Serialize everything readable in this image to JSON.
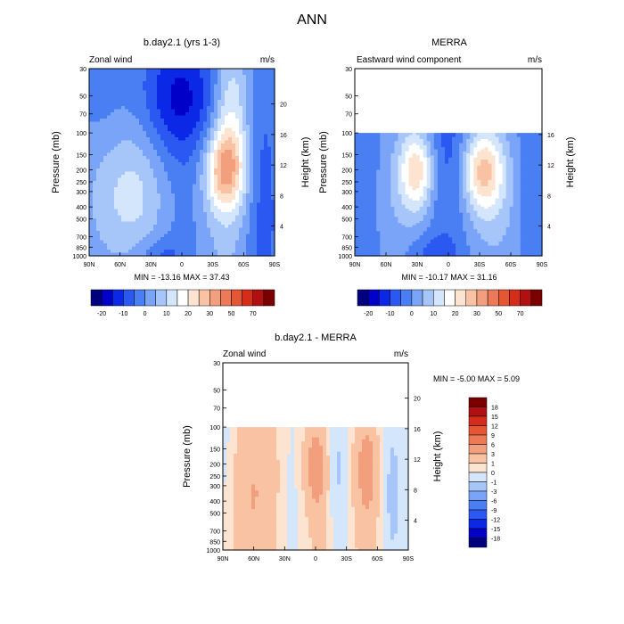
{
  "figure": {
    "title": "ANN"
  },
  "colors": {
    "panel_levels": [
      "#00007f",
      "#0000c8",
      "#0a28e6",
      "#2c58f2",
      "#4a7ff4",
      "#7aa4f7",
      "#a6c6fa",
      "#d4e6fc",
      "#ffffff",
      "#fde4d0",
      "#f9c3a3",
      "#f29f7d",
      "#ec7a58",
      "#e45634",
      "#d42e1a",
      "#b01010",
      "#7a0000"
    ],
    "diff_levels": [
      "#00007f",
      "#0000c8",
      "#0a28e6",
      "#2c58f2",
      "#4a7ff4",
      "#7aa4f7",
      "#a6c6fa",
      "#d4e6fc",
      "#fde4d0",
      "#f9c3a3",
      "#f29f7d",
      "#ec7a58",
      "#e45634",
      "#d42e1a",
      "#b01010",
      "#7a0000"
    ]
  },
  "chart_data": [
    {
      "type": "heatmap",
      "title": "b.day2.1 (yrs 1-3)",
      "left_label": "Zonal wind",
      "right_label": "m/s",
      "xlabel": "",
      "ylabel": "Pressure (mb)",
      "y2label": "Height (km)",
      "x_ticks": [
        "90N",
        "60N",
        "30N",
        "0",
        "30S",
        "60S",
        "90S"
      ],
      "y_ticks": [
        "30",
        "50",
        "70",
        "100",
        "150",
        "200",
        "250",
        "300",
        "400",
        "500",
        "700",
        "850",
        "1000"
      ],
      "y2_ticks": [
        "20",
        "16",
        "12",
        "8",
        "4"
      ],
      "xlim": [
        90,
        -90
      ],
      "ylim": [
        1000,
        30
      ],
      "log_scale_y": true,
      "data_top_pressure": 30,
      "stats": "MIN = -13.16   MAX =  37.43",
      "colorbar_labels": [
        "-20",
        "-10",
        "0",
        "10",
        "20",
        "30",
        "50",
        "70"
      ],
      "blobs": [
        {
          "lat": 50,
          "p": 350,
          "sx": 30,
          "sy": 0.9,
          "a": 7
        },
        {
          "lat": 65,
          "p": 150,
          "sx": 25,
          "sy": 1.4,
          "a": 3
        },
        {
          "lat": 38,
          "p": 300,
          "sx": 22,
          "sy": 0.8,
          "a": 4
        },
        {
          "lat": -42,
          "p": 200,
          "sx": 14,
          "sy": 0.55,
          "a": 28
        },
        {
          "lat": -48,
          "p": 60,
          "sx": 12,
          "sy": 0.9,
          "a": 14
        },
        {
          "lat": -38,
          "p": 700,
          "sx": 22,
          "sy": 1.0,
          "a": 7
        },
        {
          "lat": 2,
          "p": 50,
          "sx": 25,
          "sy": 0.8,
          "a": -16
        },
        {
          "lat": -5,
          "p": 500,
          "sx": 25,
          "sy": 1.3,
          "a": -5
        },
        {
          "lat": 22,
          "p": 950,
          "sx": 16,
          "sy": 0.2,
          "a": -6
        },
        {
          "lat": 75,
          "p": 50,
          "sx": 18,
          "sy": 0.9,
          "a": -4
        },
        {
          "lat": -78,
          "p": 500,
          "sx": 12,
          "sy": 2.0,
          "a": -8
        }
      ]
    },
    {
      "type": "heatmap",
      "title": "MERRA",
      "left_label": "Eastward wind component",
      "right_label": "m/s",
      "xlabel": "",
      "ylabel": "Pressure (mb)",
      "y2label": "Height (km)",
      "x_ticks": [
        "90N",
        "60N",
        "30N",
        "0",
        "30S",
        "60S",
        "90S"
      ],
      "y_ticks": [
        "30",
        "50",
        "70",
        "100",
        "150",
        "200",
        "250",
        "300",
        "400",
        "500",
        "700",
        "850",
        "1000"
      ],
      "y2_ticks": [
        "16",
        "12",
        "8",
        "4"
      ],
      "xlim": [
        90,
        -90
      ],
      "ylim": [
        1000,
        30
      ],
      "log_scale_y": true,
      "data_top_pressure": 100,
      "stats": "MIN = -10.17   MAX =  31.16",
      "colorbar_labels": [
        "-20",
        "-10",
        "0",
        "10",
        "20",
        "30",
        "50",
        "70"
      ],
      "blobs": [
        {
          "lat": 30,
          "p": 200,
          "sx": 12,
          "sy": 0.55,
          "a": 24
        },
        {
          "lat": 38,
          "p": 350,
          "sx": 25,
          "sy": 1.0,
          "a": 5
        },
        {
          "lat": -33,
          "p": 200,
          "sx": 14,
          "sy": 0.55,
          "a": 26
        },
        {
          "lat": -40,
          "p": 450,
          "sx": 25,
          "sy": 1.0,
          "a": 6
        },
        {
          "lat": 2,
          "p": 200,
          "sx": 22,
          "sy": 1.3,
          "a": -10
        },
        {
          "lat": 15,
          "p": 950,
          "sx": 18,
          "sy": 0.25,
          "a": -6
        },
        {
          "lat": 80,
          "p": 300,
          "sx": 10,
          "sy": 1.5,
          "a": -5
        },
        {
          "lat": -80,
          "p": 300,
          "sx": 10,
          "sy": 1.5,
          "a": -5
        }
      ]
    },
    {
      "type": "heatmap",
      "title": "b.day2.1 - MERRA",
      "left_label": "Zonal wind",
      "right_label": "m/s",
      "xlabel": "",
      "ylabel": "Pressure (mb)",
      "y2label": "Height (km)",
      "x_ticks": [
        "90N",
        "60N",
        "30N",
        "0",
        "30S",
        "60S",
        "90S"
      ],
      "y_ticks": [
        "30",
        "50",
        "70",
        "100",
        "150",
        "200",
        "250",
        "300",
        "400",
        "500",
        "700",
        "850",
        "1000"
      ],
      "y2_ticks": [
        "20",
        "16",
        "12",
        "8",
        "4"
      ],
      "xlim": [
        90,
        -90
      ],
      "ylim": [
        1000,
        30
      ],
      "log_scale_y": true,
      "data_top_pressure": 100,
      "stats": "MIN =  -5.00   MAX =   5.09",
      "colorbar_labels": [
        "18",
        "15",
        "12",
        "9",
        "6",
        "3",
        "1",
        "0",
        "-1",
        "-3",
        "-6",
        "-9",
        "-12",
        "-15",
        "-18"
      ],
      "blobs": [
        {
          "lat": 52,
          "p": 300,
          "sx": 16,
          "sy": 1.5,
          "a": 2.5
        },
        {
          "lat": 72,
          "p": 600,
          "sx": 12,
          "sy": 1.5,
          "a": 1.5
        },
        {
          "lat": 28,
          "p": 400,
          "sx": 10,
          "sy": 1.4,
          "a": -0.8
        },
        {
          "lat": 0,
          "p": 200,
          "sx": 8,
          "sy": 0.6,
          "a": 3.5
        },
        {
          "lat": -5,
          "p": 500,
          "sx": 10,
          "sy": 1.2,
          "a": 1.5
        },
        {
          "lat": -20,
          "p": 250,
          "sx": 8,
          "sy": 1.1,
          "a": -1.5
        },
        {
          "lat": -50,
          "p": 200,
          "sx": 9,
          "sy": 0.7,
          "a": 4
        },
        {
          "lat": -52,
          "p": 800,
          "sx": 12,
          "sy": 0.8,
          "a": 1.5
        },
        {
          "lat": -72,
          "p": 400,
          "sx": 10,
          "sy": 1.4,
          "a": -1.5
        },
        {
          "lat": 85,
          "p": 200,
          "sx": 8,
          "sy": 1.5,
          "a": -0.8
        }
      ]
    }
  ]
}
